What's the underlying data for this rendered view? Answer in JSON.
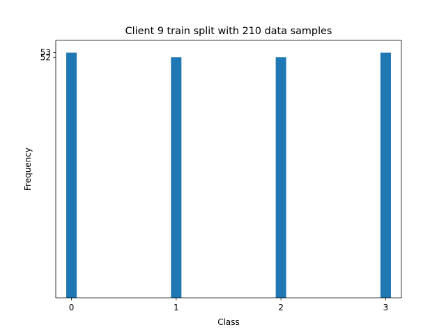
{
  "chart_data": {
    "type": "bar",
    "title": "Client 9 train split with 210 data samples",
    "xlabel": "Class",
    "ylabel": "Frequency",
    "categories": [
      "0",
      "1",
      "2",
      "3"
    ],
    "values": [
      53,
      52,
      52,
      53
    ],
    "y_tick_labels": [
      "53",
      "52"
    ],
    "bar_color": "#1f77b4",
    "grid": false,
    "legend": "none"
  }
}
